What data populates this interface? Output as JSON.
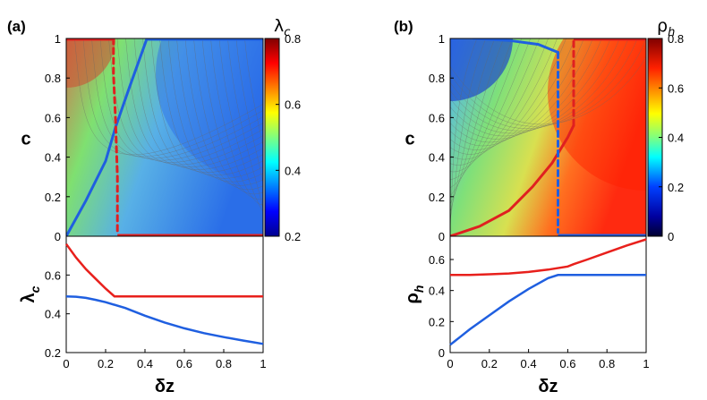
{
  "panels": [
    {
      "label": "(a)",
      "heatmap": {
        "x_label": "",
        "y_label": "c",
        "x_range": [
          0,
          1
        ],
        "y_range": [
          0,
          1
        ],
        "y_ticks": [
          "0",
          "0.2",
          "0.4",
          "0.6",
          "0.8",
          "1"
        ],
        "colorbar": {
          "label": "λ",
          "label_sub": "c",
          "range": [
            0.2,
            0.8
          ],
          "ticks": [
            "0.2",
            "0.4",
            "0.6",
            "0.8"
          ]
        },
        "boundary_solid": {
          "color": "#1f5fe0",
          "points": [
            [
              0,
              0
            ],
            [
              0.1,
              0.18
            ],
            [
              0.2,
              0.38
            ],
            [
              0.25,
              0.55
            ],
            [
              0.32,
              0.75
            ],
            [
              0.41,
              1
            ]
          ]
        },
        "boundary_dashed": {
          "color": "#e02020",
          "points": [
            [
              0.24,
              1
            ],
            [
              0.24,
              0.82
            ],
            [
              0.25,
              0.6
            ],
            [
              0.26,
              0.3
            ],
            [
              0.26,
              0.02
            ]
          ]
        },
        "top_edge": {
          "color": "#e02020",
          "x_range": [
            0,
            0.24
          ]
        },
        "top_edge_blue": {
          "color": "#1f5fe0",
          "x_range": [
            0.41,
            1
          ]
        },
        "bottom_edge": {
          "color": "#e02020",
          "x_range": [
            0.26,
            1
          ]
        }
      },
      "line_chart": {
        "x_label": "δz",
        "y_label": "λ",
        "y_label_sub": "c",
        "x_ticks": [
          "0",
          "0.2",
          "0.4",
          "0.6",
          "0.8",
          "1"
        ],
        "y_ticks": [
          "0.2",
          "0.4",
          "0.6"
        ],
        "y_range": [
          0.2,
          0.8
        ],
        "series": [
          {
            "color": "#e8201c",
            "x": [
              0,
              0.05,
              0.1,
              0.15,
              0.2,
              0.245,
              0.3,
              0.5,
              0.7,
              1
            ],
            "y": [
              0.76,
              0.69,
              0.63,
              0.58,
              0.53,
              0.49,
              0.49,
              0.49,
              0.49,
              0.49
            ]
          },
          {
            "color": "#1f5fe0",
            "x": [
              0,
              0.05,
              0.1,
              0.15,
              0.2,
              0.3,
              0.4,
              0.5,
              0.6,
              0.7,
              0.8,
              0.9,
              1
            ],
            "y": [
              0.49,
              0.488,
              0.482,
              0.472,
              0.46,
              0.43,
              0.39,
              0.355,
              0.325,
              0.3,
              0.28,
              0.262,
              0.245
            ]
          }
        ]
      }
    },
    {
      "label": "(b)",
      "heatmap": {
        "x_label": "",
        "y_label": "c",
        "x_range": [
          0,
          1
        ],
        "y_range": [
          0,
          1
        ],
        "y_ticks": [
          "0",
          "0.2",
          "0.4",
          "0.6",
          "0.8",
          "1"
        ],
        "colorbar": {
          "label": "ρ",
          "label_sub": "h",
          "range": [
            0,
            0.8
          ],
          "ticks": [
            "0",
            "0.2",
            "0.4",
            "0.6",
            "0.8"
          ]
        },
        "boundary_solid": {
          "color": "#e02020",
          "points": [
            [
              0,
              0
            ],
            [
              0.15,
              0.05
            ],
            [
              0.3,
              0.13
            ],
            [
              0.42,
              0.25
            ],
            [
              0.52,
              0.37
            ],
            [
              0.6,
              0.5
            ],
            [
              0.63,
              0.56
            ]
          ]
        },
        "boundary_solid_blue": {
          "color": "#1f5fe0",
          "points": [
            [
              0.12,
              1
            ],
            [
              0.3,
              0.99
            ],
            [
              0.45,
              0.97
            ],
            [
              0.55,
              0.93
            ]
          ]
        },
        "boundary_dashed": {
          "color": "#1f5fe0",
          "points": [
            [
              0.55,
              0.93
            ],
            [
              0.55,
              0.6
            ],
            [
              0.55,
              0.3
            ],
            [
              0.55,
              0.02
            ]
          ]
        },
        "boundary_dashed_red": {
          "color": "#e02020",
          "points": [
            [
              0.63,
              0.56
            ],
            [
              0.63,
              0.8
            ],
            [
              0.63,
              1
            ]
          ]
        },
        "top_edge": {
          "color": "#e02020",
          "x_range": [
            0.63,
            1
          ]
        },
        "bottom_edge": {
          "color": "#1f5fe0",
          "x_range": [
            0.55,
            1
          ]
        }
      },
      "line_chart": {
        "x_label": "δz",
        "y_label": "ρ",
        "y_label_sub": "h",
        "x_ticks": [
          "0",
          "0.2",
          "0.4",
          "0.6",
          "0.8",
          "1"
        ],
        "y_ticks": [
          "0",
          "0.2",
          "0.4",
          "0.6"
        ],
        "y_range": [
          0,
          0.75
        ],
        "series": [
          {
            "color": "#e8201c",
            "x": [
              0,
              0.1,
              0.2,
              0.3,
              0.4,
              0.5,
              0.6,
              0.63,
              0.7,
              0.8,
              0.9,
              1
            ],
            "y": [
              0.5,
              0.501,
              0.505,
              0.51,
              0.52,
              0.535,
              0.555,
              0.57,
              0.6,
              0.645,
              0.69,
              0.73
            ]
          },
          {
            "color": "#1f5fe0",
            "x": [
              0,
              0.05,
              0.1,
              0.2,
              0.3,
              0.4,
              0.5,
              0.55,
              0.7,
              1
            ],
            "y": [
              0.05,
              0.1,
              0.15,
              0.24,
              0.33,
              0.41,
              0.48,
              0.5,
              0.5,
              0.5
            ]
          }
        ]
      }
    }
  ],
  "chart_data": [
    {
      "type": "heatmap",
      "title": "(a)",
      "xlabel": "",
      "ylabel": "c",
      "xlim": [
        0,
        1
      ],
      "ylim": [
        0,
        1
      ],
      "colorbar_label": "λc",
      "colorbar_range": [
        0.2,
        0.8
      ]
    },
    {
      "type": "line",
      "xlabel": "δz",
      "ylabel": "λc",
      "ylim": [
        0.2,
        0.8
      ],
      "series": [
        {
          "color": "#e8201c",
          "x": [
            0,
            0.05,
            0.1,
            0.15,
            0.2,
            0.245,
            0.3,
            0.5,
            0.7,
            1
          ],
          "y": [
            0.76,
            0.69,
            0.63,
            0.58,
            0.53,
            0.49,
            0.49,
            0.49,
            0.49,
            0.49
          ]
        },
        {
          "color": "#1f5fe0",
          "x": [
            0,
            0.05,
            0.1,
            0.15,
            0.2,
            0.3,
            0.4,
            0.5,
            0.6,
            0.7,
            0.8,
            0.9,
            1
          ],
          "y": [
            0.49,
            0.488,
            0.482,
            0.472,
            0.46,
            0.43,
            0.39,
            0.355,
            0.325,
            0.3,
            0.28,
            0.262,
            0.245
          ]
        }
      ]
    },
    {
      "type": "heatmap",
      "title": "(b)",
      "xlabel": "",
      "ylabel": "c",
      "xlim": [
        0,
        1
      ],
      "ylim": [
        0,
        1
      ],
      "colorbar_label": "ρh",
      "colorbar_range": [
        0,
        0.8
      ]
    },
    {
      "type": "line",
      "xlabel": "δz",
      "ylabel": "ρh",
      "ylim": [
        0,
        0.75
      ],
      "series": [
        {
          "color": "#e8201c",
          "x": [
            0,
            0.1,
            0.2,
            0.3,
            0.4,
            0.5,
            0.6,
            0.63,
            0.7,
            0.8,
            0.9,
            1
          ],
          "y": [
            0.5,
            0.501,
            0.505,
            0.51,
            0.52,
            0.535,
            0.555,
            0.57,
            0.6,
            0.645,
            0.69,
            0.73
          ]
        },
        {
          "color": "#1f5fe0",
          "x": [
            0,
            0.05,
            0.1,
            0.2,
            0.3,
            0.4,
            0.5,
            0.55,
            0.7,
            1
          ],
          "y": [
            0.05,
            0.1,
            0.15,
            0.24,
            0.33,
            0.41,
            0.48,
            0.5,
            0.5,
            0.5
          ]
        }
      ]
    }
  ]
}
